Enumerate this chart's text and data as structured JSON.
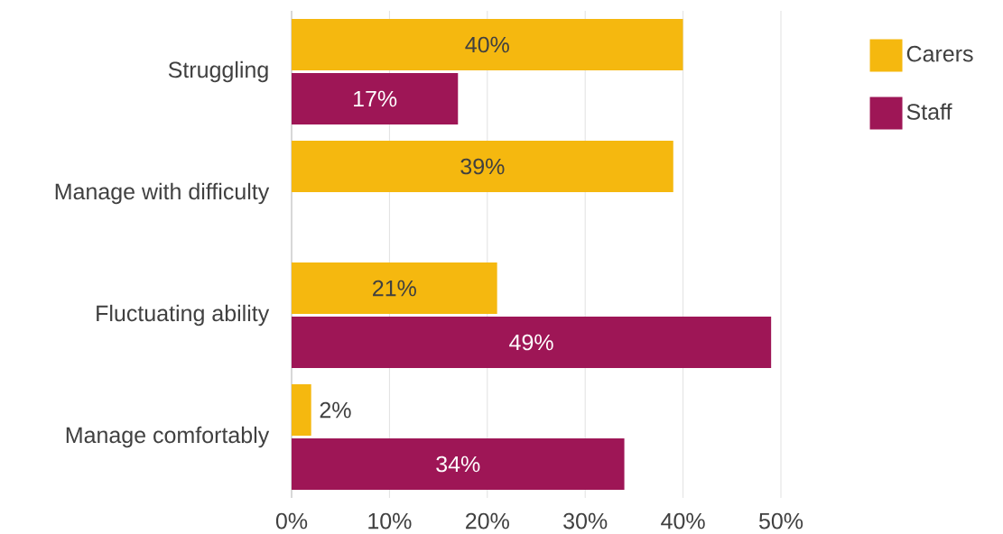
{
  "chart_data": {
    "type": "bar",
    "orientation": "horizontal",
    "categories": [
      "Struggling",
      "Manage with difficulty",
      "Fluctuating ability",
      "Manage comfortably"
    ],
    "series": [
      {
        "name": "Carers",
        "color": "#f5b80f",
        "values": [
          40,
          39,
          21,
          2
        ],
        "value_labels": [
          "40%",
          "39%",
          "21%",
          "2%"
        ]
      },
      {
        "name": "Staff",
        "color": "#9e1656",
        "values": [
          17,
          null,
          49,
          34
        ],
        "value_labels": [
          "17%",
          null,
          "49%",
          "34%"
        ]
      }
    ],
    "xlim": [
      0,
      50
    ],
    "xticks": [
      {
        "value": 0,
        "label": "0%"
      },
      {
        "value": 10,
        "label": "10%"
      },
      {
        "value": 20,
        "label": "20%"
      },
      {
        "value": 30,
        "label": "30%"
      },
      {
        "value": 40,
        "label": "40%"
      },
      {
        "value": 50,
        "label": "50%"
      }
    ],
    "grid": "x",
    "legend": "top right"
  }
}
